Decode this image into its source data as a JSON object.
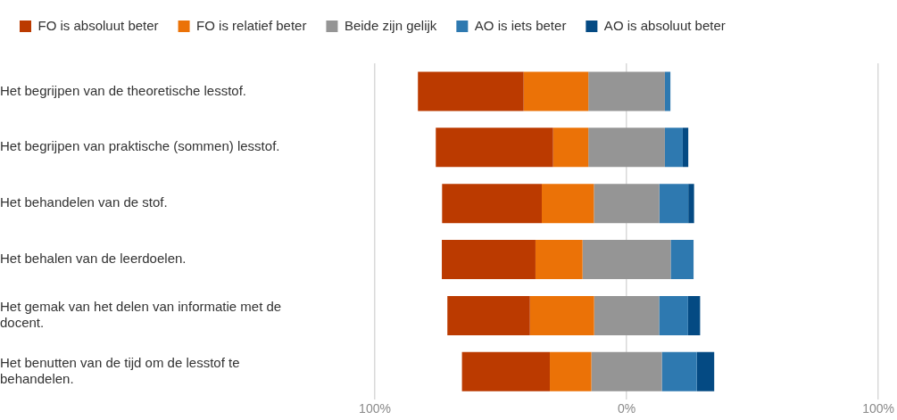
{
  "chart_data": {
    "type": "bar",
    "orientation": "horizontal",
    "categories": [
      "Het begrijpen van de theoretische lesstof.",
      "Het begrijpen van praktische (sommen) lesstof.",
      "Het behandelen van de stof.",
      "Het behalen van de leerdoelen.",
      "Het gemak van het delen van informatie met de docent.",
      "Het benutten van de tijd om de lesstof te behandelen."
    ],
    "series": [
      {
        "name": "FO is absoluut beter",
        "color": "#bb3a00",
        "base": [
          -82.9,
          -75.8,
          -73.3,
          -73.4,
          -71.2,
          -65.4
        ],
        "values": [
          42,
          46.6,
          39.6,
          37.2,
          32.8,
          34.9
        ]
      },
      {
        "name": "FO is relatief beter",
        "color": "#eb7207",
        "base": [
          -40.9,
          -29.2,
          -33.7,
          -36.2,
          -38.4,
          -30.5
        ],
        "values": [
          25.7,
          14,
          20.7,
          18.7,
          25.5,
          16.5
        ]
      },
      {
        "name": "Beide zijn gelijk",
        "color": "#959595",
        "base": [
          -15.2,
          -15.2,
          -13,
          -17.5,
          -12.9,
          -14
        ],
        "values": [
          30.4,
          30.4,
          26,
          35,
          25.8,
          28
        ]
      },
      {
        "name": "AO is iets beter",
        "color": "#2e79b0",
        "base": [
          15.2,
          15.2,
          13,
          17.5,
          12.9,
          14
        ],
        "values": [
          2.2,
          7.1,
          11.5,
          9.1,
          11.5,
          13.9
        ]
      },
      {
        "name": "AO is absoluut beter",
        "color": "#044a83",
        "base": [
          null,
          22.3,
          24.5,
          null,
          24.4,
          27.9
        ],
        "values": [
          null,
          2.2,
          2.3,
          null,
          4.8,
          6.9
        ]
      }
    ],
    "xlim": [
      -100,
      100
    ],
    "xticks": [
      {
        "value": -100,
        "label": "100%"
      },
      {
        "value": 0,
        "label": "0%"
      },
      {
        "value": 100,
        "label": "100%"
      }
    ],
    "grid": "x",
    "legend": "top left"
  }
}
